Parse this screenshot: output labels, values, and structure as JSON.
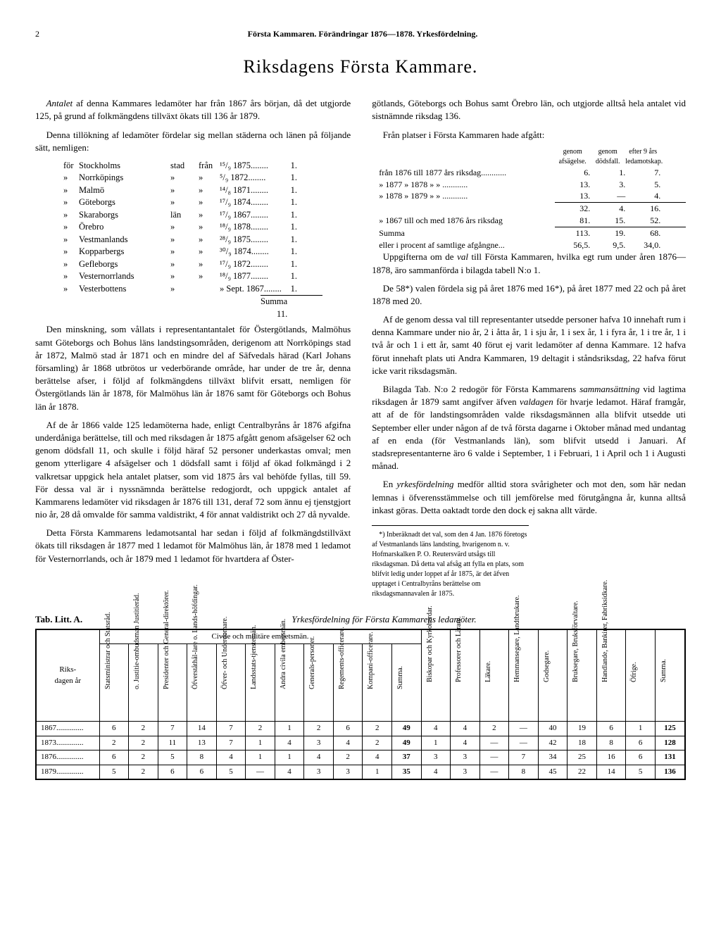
{
  "page_number": "2",
  "running_head": "Första Kammaren.  Förändringar 1876—1878.  Yrkesfördelning.",
  "title": "Riksdagens Första Kammare.",
  "left_col": {
    "p1": "Antalet af denna Kammares ledamöter har från 1867 års början, då det utgjorde 125, på grund af folkmängdens tillväxt ökats till 136 år 1879.",
    "p2": "Denna tillökning af ledamöter fördelar sig mellan städerna och länen på följande sätt, nemligen:",
    "regions": [
      {
        "pre": "för",
        "name": "Stockholms",
        "type": "stad",
        "from": "från",
        "date": "¹⁵/₉ 1875........",
        "n": "1."
      },
      {
        "pre": "»",
        "name": "Norrköpings",
        "type": "»",
        "from": "»",
        "date": "⁵/₉ 1872........",
        "n": "1."
      },
      {
        "pre": "»",
        "name": "Malmö",
        "type": "»",
        "from": "»",
        "date": "¹⁴/₈ 1871........",
        "n": "1."
      },
      {
        "pre": "»",
        "name": "Göteborgs",
        "type": "»",
        "from": "»",
        "date": "¹⁷/₉ 1874........",
        "n": "1."
      },
      {
        "pre": "»",
        "name": "Skaraborgs",
        "type": "län",
        "from": "»",
        "date": "¹⁷/₉ 1867........",
        "n": "1."
      },
      {
        "pre": "»",
        "name": "Örebro",
        "type": "»",
        "from": "»",
        "date": "¹⁸/₉ 1878........",
        "n": "1."
      },
      {
        "pre": "»",
        "name": "Vestmanlands",
        "type": "»",
        "from": "»",
        "date": "²⁸/₉ 1875........",
        "n": "1."
      },
      {
        "pre": "»",
        "name": "Kopparbergs",
        "type": "»",
        "from": "»",
        "date": "³⁰/₉ 1874........",
        "n": "1."
      },
      {
        "pre": "»",
        "name": "Gefleborgs",
        "type": "»",
        "from": "»",
        "date": "¹⁷/₉ 1872........",
        "n": "1."
      },
      {
        "pre": "»",
        "name": "Vesternorrlands",
        "type": "»",
        "from": "»",
        "date": "¹⁸/₉ 1877........",
        "n": "1."
      },
      {
        "pre": "»",
        "name": "Vesterbottens",
        "type": "»",
        "from": "",
        "date": "» Sept. 1867........",
        "n": "1."
      }
    ],
    "summa": "Summa 11.",
    "p3": "Den minskning, som vållats i representantantalet för Östergötlands, Malmöhus samt Göteborgs och Bohus läns landstingsområden, derigenom att Norrköpings stad år 1872, Malmö stad år 1871 och en mindre del af Säfvedals härad (Karl Johans församling) år 1868 utbrötos ur vederbörande område, har under de tre år, denna berättelse afser, i följd af folkmängdens tillväxt blifvit ersatt, nemligen för Östergötlands län år 1878, för Malmöhus län år 1876 samt för Göteborgs och Bohus län år 1878.",
    "p4": "Af de år 1866 valde 125 ledamöterna hade, enligt Centralbyråns år 1876 afgifna underdåniga berättelse, till och med riksdagen år 1875 afgått genom afsägelser 62 och genom dödsfall 11, och skulle i följd häraf 52 personer underkastas omval; men genom ytterligare 4 afsägelser och 1 dödsfall samt i följd af ökad folkmängd i 2 valkretsar uppgick hela antalet platser, som vid 1875 års val behöfde fyllas, till 59. För dessa val är i nyssnämnda berättelse redogjordt, och uppgick antalet af Kammarens ledamöter vid riksdagen år 1876 till 131, deraf 72 som ännu ej tjenstgjort nio år, 28 då omvalde för samma valdistrikt, 4 för annat valdistrikt och 27 då nyvalde.",
    "p5": "Detta Första Kammarens ledamotsantal har sedan i följd af folkmängdstillväxt ökats till riksdagen år 1877 med 1 ledamot för Malmöhus län, år 1878 med 1 ledamot för Vesternorrlands, och år 1879 med 1 ledamot för hvartdera af Öster-"
  },
  "right_col": {
    "p1": "götlands, Göteborgs och Bohus samt Örebro län, och utgjorde alltså hela antalet vid sistnämnde riksdag 136.",
    "p2": "Från platser i Första Kammaren hade afgått:",
    "stats_hdr": [
      "genom afsägelse.",
      "genom dödsfall.",
      "efter 9 års ledamotskap."
    ],
    "stats": [
      {
        "lab": "från 1876 till 1877 års riksdag............",
        "a": "6.",
        "b": "1.",
        "c": "7."
      },
      {
        "lab": "»    1877  »  1878  »      »     ............",
        "a": "13.",
        "b": "3.",
        "c": "5."
      },
      {
        "lab": "»    1878  »  1879  »      »     ............",
        "a": "13.",
        "b": "—",
        "c": "4."
      },
      {
        "lab": "",
        "a": "32.",
        "b": "4.",
        "c": "16."
      },
      {
        "lab": "»    1867 till och med 1876 års riksdag",
        "a": "81.",
        "b": "15.",
        "c": "52."
      },
      {
        "lab": "Summa",
        "a": "113.",
        "b": "19.",
        "c": "68."
      },
      {
        "lab": "eller i procent af samtlige afgångne...",
        "a": "56,5.",
        "b": "9,5.",
        "c": "34,0."
      }
    ],
    "p3": "Uppgifterna om de val till Första Kammaren, hvilka egt rum under åren 1876—1878, äro sammanförda i bilagda tabell N:o 1.",
    "p4": "De 58*) valen fördela sig på året 1876 med 16*), på året 1877 med 22 och på året 1878 med 20.",
    "p5": "Af de genom dessa val till representanter utsedde personer hafva 10 innehaft rum i denna Kammare under nio år, 2 i åtta år, 1 i sju år, 1 i sex år, 1 i fyra år, 1 i tre år, 1 i två år och 1 i ett år, samt 40 förut ej varit ledamöter af denna Kammare. 12 hafva förut innehaft plats uti Andra Kammaren, 19 deltagit i ståndsriksdag, 22 hafva förut icke varit riksdagsmän.",
    "p6": "Bilagda Tab. N:o 2 redogör för Första Kammarens sammansättning vid lagtima riksdagen år 1879 samt angifver äfven valdagen för hvarje ledamot. Häraf framgår, att af de för landstingsområden valde riksdagsmännen alla blifvit utsedde uti September eller under någon af de två första dagarne i Oktober månad med undantag af en enda (för Vestmanlands län), som blifvit utsedd i Januari. Af stadsrepresentanterne äro 6 valde i September, 1 i Februari, 1 i April och 1 i Augusti månad.",
    "p7": "En yrkesfördelning medför alltid stora svårigheter och mot den, som här nedan lemnas i öfverensstämmelse och till jemförelse med förutgångna år, kunna alltså inkast göras. Detta oaktadt torde den dock ej sakna allt värde.",
    "footnote": "*) Inberäknadt det val, som den 4 Jan. 1876 företogs af Vestmanlands läns landsting, hvarigenom n. v. Hofmarskalken P. O. Reutersvärd utsågs till riksdagsman. Då detta val afsåg att fylla en plats, som blifvit ledig under loppet af år 1875, är det äfven upptaget i Centralbyråns berättelse om riksdagsmannavalen år 1875."
  },
  "table": {
    "label": "Tab. Litt. A.",
    "subtitle": "Yrkesfördelning för Första Kammarens ledamöter.",
    "group_header": "Civile och militäre embetsmän.",
    "col_left": "Riks-\ndagen år",
    "rot_cols": [
      "Statsministrar och Statsråd.",
      "o. Justitie-ombudsman Justitieråd.",
      "Presidenter och General-direktörer.",
      "Öfverståthål-lare o. Lands-höfdingar.",
      "Öfver- och Underdomare.",
      "Landsstats-tjenstemän.",
      "Andra civila embetsmän.",
      "Generals-personer.",
      "Regements-officerare.",
      "Kompani-officerare.",
      "Summa.",
      "Biskopar och Kyrkoherdar.",
      "Professorer och Lärare.",
      "Läkare.",
      "Hemmansegare, Landtbrukare.",
      "Godsegare.",
      "Bruksegare, Bruksförvaltare.",
      "Handlande, Bankirer, Fabriksidkare.",
      "Öfrige.",
      "Summa."
    ],
    "rows": [
      {
        "y": "1867..............",
        "v": [
          "6",
          "2",
          "7",
          "14",
          "7",
          "2",
          "1",
          "2",
          "6",
          "2",
          "49",
          "4",
          "4",
          "2",
          "—",
          "40",
          "19",
          "6",
          "1",
          "125"
        ]
      },
      {
        "y": "1873..............",
        "v": [
          "2",
          "2",
          "11",
          "13",
          "7",
          "1",
          "4",
          "3",
          "4",
          "2",
          "49",
          "1",
          "4",
          "—",
          "—",
          "42",
          "18",
          "8",
          "6",
          "128"
        ]
      },
      {
        "y": "1876..............",
        "v": [
          "6",
          "2",
          "5",
          "8",
          "4",
          "1",
          "1",
          "4",
          "2",
          "4",
          "37",
          "3",
          "3",
          "—",
          "7",
          "34",
          "25",
          "16",
          "6",
          "131"
        ]
      },
      {
        "y": "1879..............",
        "v": [
          "5",
          "2",
          "6",
          "6",
          "5",
          "—",
          "4",
          "3",
          "3",
          "1",
          "35",
          "4",
          "3",
          "—",
          "8",
          "45",
          "22",
          "14",
          "5",
          "136"
        ]
      }
    ]
  }
}
